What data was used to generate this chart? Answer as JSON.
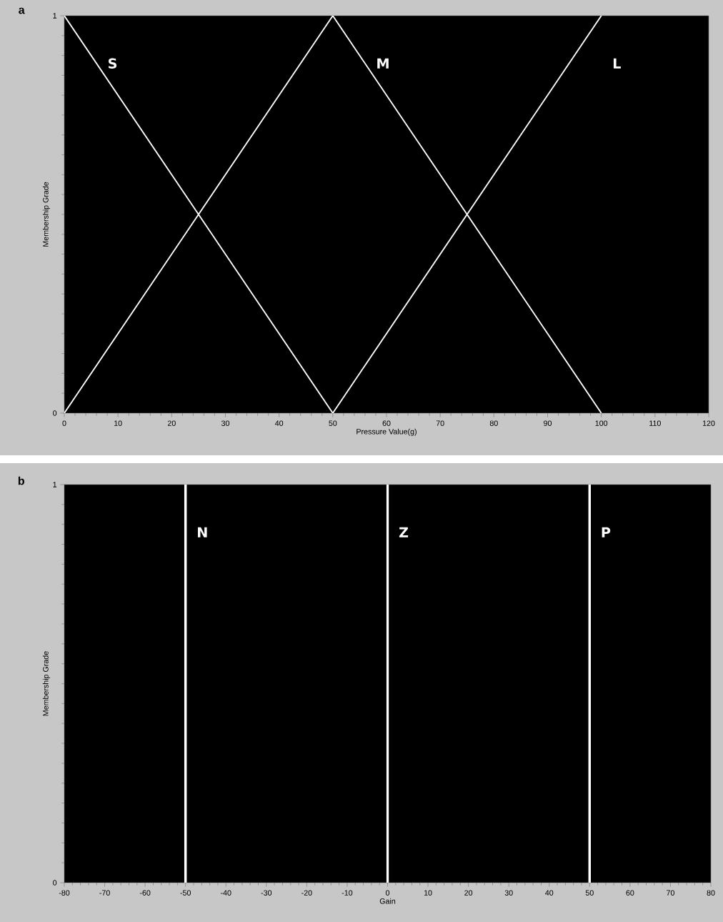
{
  "chart_data": [
    {
      "type": "line",
      "title": "a",
      "xlabel": "Pressure Value(g)",
      "ylabel": "Membership Grade",
      "xlim": [
        0,
        120
      ],
      "ylim": [
        0,
        1
      ],
      "xticks": [
        0,
        10,
        20,
        30,
        40,
        50,
        60,
        70,
        80,
        90,
        100,
        110,
        120
      ],
      "yticks": [
        0,
        1
      ],
      "series": [
        {
          "name": "S",
          "color": "#ffffff",
          "x": [
            0,
            50
          ],
          "values": [
            1,
            0
          ]
        },
        {
          "name": "M",
          "color": "#ffffff",
          "x": [
            0,
            50,
            100
          ],
          "values": [
            0,
            1,
            0
          ]
        },
        {
          "name": "L",
          "color": "#ffffff",
          "x": [
            50,
            100
          ],
          "values": [
            0,
            1
          ]
        }
      ]
    },
    {
      "type": "line",
      "title": "b",
      "xlabel": "Gain",
      "ylabel": "Membership Grade",
      "xlim": [
        -80,
        80
      ],
      "ylim": [
        0,
        1
      ],
      "xticks": [
        -80,
        -70,
        -60,
        -50,
        -40,
        -30,
        -20,
        -10,
        0,
        10,
        20,
        30,
        40,
        50,
        60,
        70,
        80
      ],
      "yticks": [
        0,
        1
      ],
      "ref_lines": [
        {
          "axis": "x",
          "value": -50,
          "label": "N",
          "color": "#ffffff"
        },
        {
          "axis": "x",
          "value": 0,
          "label": "Z",
          "color": "#ffffff"
        },
        {
          "axis": "x",
          "value": 50,
          "label": "P",
          "color": "#ffffff"
        }
      ]
    }
  ]
}
